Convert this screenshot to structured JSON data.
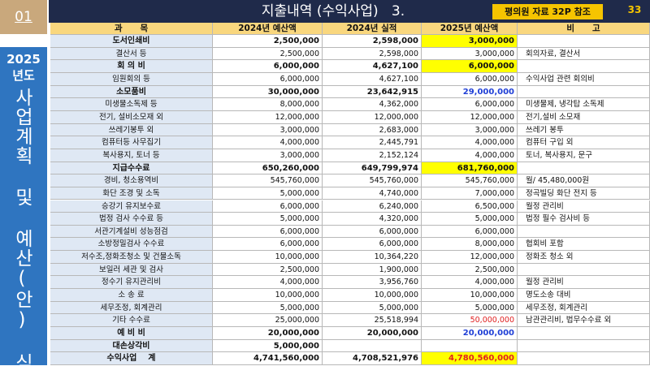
{
  "header": {
    "section": "01",
    "title": "지출내역 (수익사업)   3.",
    "badge": "평의원 자료 32P 참조",
    "page": "33"
  },
  "sidebar": {
    "year": "2025",
    "unit": "년도",
    "title": "사업계획 및 예산(안) 심의"
  },
  "table": {
    "columns": [
      "과      목",
      "2024년 예산액",
      "2024년 실적",
      "2025년 예산액",
      "비      고"
    ],
    "rows": [
      {
        "cells": [
          "도서인쇄비",
          "2,500,000",
          "2,598,000",
          "3,000,000",
          null
        ],
        "bold": true,
        "highlight": "#ffff00"
      },
      {
        "cells": [
          "결산서 등",
          "2,500,000",
          "2,598,000",
          "3,000,000",
          "회의자료, 결산서"
        ]
      },
      {
        "cells": [
          "회 의 비",
          "6,000,000",
          "4,627,100",
          "6,000,000",
          null
        ],
        "bold": true,
        "highlight": "#ffff00"
      },
      {
        "cells": [
          "임원회의 등",
          "6,000,000",
          "4,627,100",
          "6,000,000",
          "수익사업 관련 회의비"
        ]
      },
      {
        "cells": [
          "소모품비",
          "30,000,000",
          "23,642,915",
          "29,000,000",
          null
        ],
        "bold": true,
        "color": "#1f3fd6"
      },
      {
        "cells": [
          "미생물소독제 등",
          "8,000,000",
          "4,362,000",
          "6,000,000",
          "미생물제, 냉각탑 소독제"
        ]
      },
      {
        "cells": [
          "전기, 설비소모재 외",
          "12,000,000",
          "12,000,000",
          "12,000,000",
          "전기,설비 소모재"
        ]
      },
      {
        "cells": [
          "쓰레기봉투 외",
          "3,000,000",
          "2,683,000",
          "3,000,000",
          "쓰레기 봉투"
        ]
      },
      {
        "cells": [
          "컴퓨터등 사무집기",
          "4,000,000",
          "2,445,791",
          "4,000,000",
          "컴퓨터 구입 외"
        ]
      },
      {
        "cells": [
          "복사용지, 토너 등",
          "3,000,000",
          "2,152,124",
          "4,000,000",
          "토너, 복사용지, 문구"
        ]
      },
      {
        "cells": [
          "지급수수료",
          "650,260,000",
          "649,799,974",
          "681,760,000",
          null
        ],
        "bold": true,
        "highlight": "#ffff00"
      },
      {
        "cells": [
          "경비, 청소용역비",
          "545,760,000",
          "545,760,000",
          "545,760,000",
          "월/ 45,480,000원"
        ]
      },
      {
        "cells": [
          "화단 조경 및 소독",
          "5,000,000",
          "4,740,000",
          "7,000,000",
          "정곡빌딩 화단 전지 등"
        ]
      },
      {
        "cells": [
          "승강기 유지보수료",
          "6,000,000",
          "6,240,000",
          "6,500,000",
          "월정 관리비"
        ]
      },
      {
        "cells": [
          "법정 검사 수수료 등",
          "5,000,000",
          "4,320,000",
          "5,000,000",
          "법정 필수 검사비 등"
        ]
      },
      {
        "cells": [
          "서관기계설비 성능점검",
          "6,000,000",
          "6,000,000",
          "6,000,000",
          null
        ]
      },
      {
        "cells": [
          "소방정밀검사 수수료",
          "6,000,000",
          "6,000,000",
          "8,000,000",
          "협회비 포함"
        ]
      },
      {
        "cells": [
          "저수조,정화조청소 및 건물소독",
          "10,000,000",
          "10,364,220",
          "12,000,000",
          "정화조 청소 외"
        ]
      },
      {
        "cells": [
          "보일러 세관 및 검사",
          "2,500,000",
          "1,900,000",
          "2,500,000",
          null
        ]
      },
      {
        "cells": [
          "정수기 유지관리비",
          "4,000,000",
          "3,956,760",
          "4,000,000",
          "월정 관리비"
        ]
      },
      {
        "cells": [
          "소 송 료",
          "10,000,000",
          "10,000,000",
          "10,000,000",
          "명도소송 대비"
        ]
      },
      {
        "cells": [
          "세무조정, 회계관리",
          "5,000,000",
          "5,000,000",
          "5,000,000",
          "세무조정, 회계관리"
        ]
      },
      {
        "cells": [
          "기타 수수료",
          "25,000,000",
          "25,518,994",
          "50,000,000",
          "남관관리비, 법무수수료 외"
        ],
        "color": "#e02020"
      },
      {
        "cells": [
          "예 비 비",
          "20,000,000",
          "20,000,000",
          "20,000,000",
          null
        ],
        "bold": true,
        "color": "#1f3fd6"
      },
      {
        "cells": [
          "대손상각비",
          "5,000,000",
          null,
          null,
          null
        ],
        "bold": true
      },
      {
        "cells": [
          "수익사업    계",
          "4,741,560,000",
          "4,708,521,976",
          "4,780,560,000",
          null
        ],
        "bold": true,
        "highlight": "#ffff00",
        "color": "#e02020"
      }
    ]
  }
}
